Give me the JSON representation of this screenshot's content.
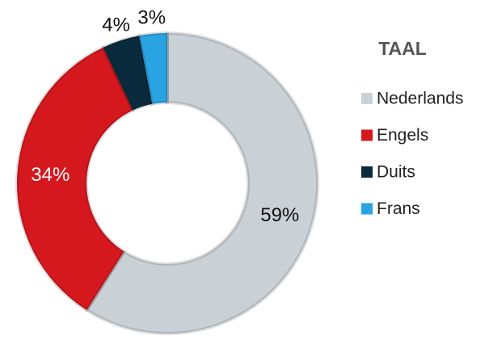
{
  "chart_data": {
    "type": "donut",
    "legend_title": "TAAL",
    "categories": [
      "Nederlands",
      "Engels",
      "Duits",
      "Frans"
    ],
    "values": [
      59,
      34,
      4,
      3
    ],
    "value_labels": [
      "59%",
      "34%",
      "4%",
      "3%"
    ],
    "colors": [
      "#c9d1d6",
      "#d5181e",
      "#0a2b3d",
      "#29a3e2"
    ],
    "legend": "right"
  }
}
